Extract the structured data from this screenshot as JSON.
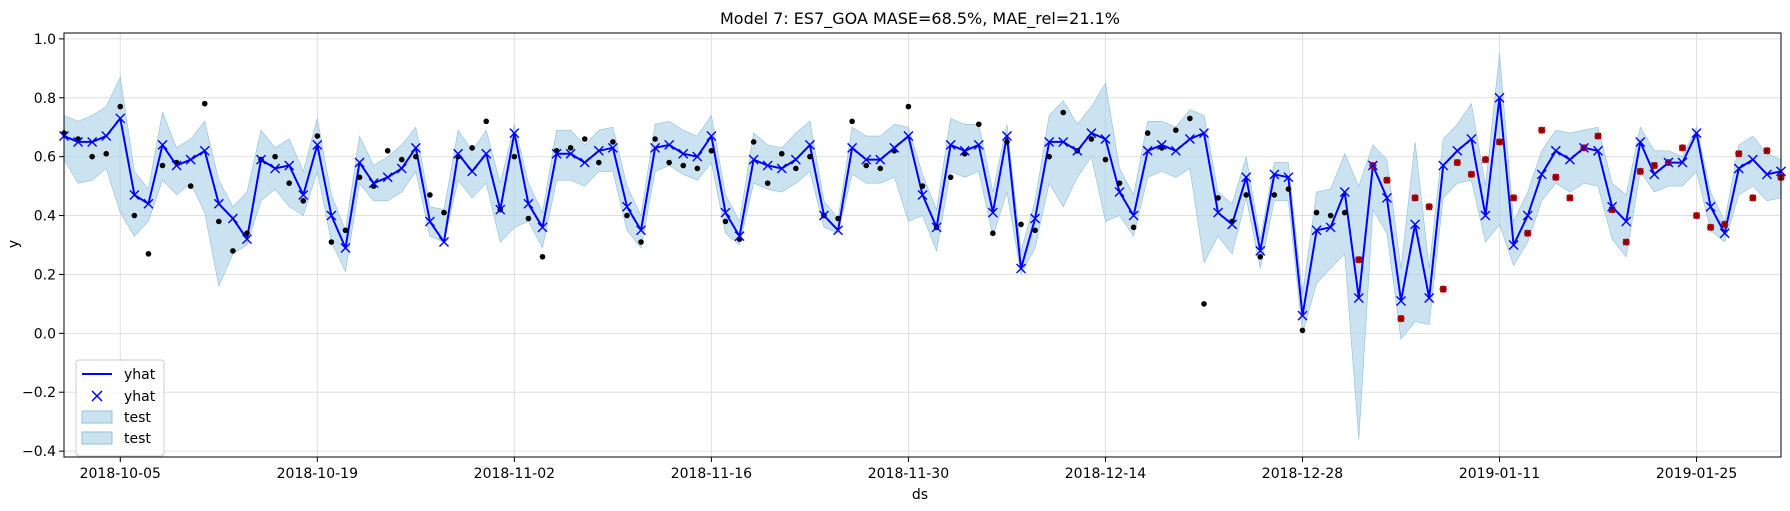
{
  "chart_data": {
    "type": "line",
    "title": "Model 7: ES7_GOA MASE=68.5%, MAE_rel=21.1%",
    "xlabel": "ds",
    "ylabel": "y",
    "x_start": "2018-10-01",
    "x_end": "2019-01-31",
    "ylim": [
      -0.42,
      1.02
    ],
    "grid": true,
    "legend_position": "lower-left",
    "x_ticks": [
      "2018-10-05",
      "2018-10-19",
      "2018-11-02",
      "2018-11-16",
      "2018-11-30",
      "2018-12-14",
      "2018-12-28",
      "2019-01-11",
      "2019-01-25"
    ],
    "y_ticks": [
      "−0.4",
      "−0.2",
      "0.0",
      "0.2",
      "0.4",
      "0.6",
      "0.8",
      "1.0"
    ],
    "y_tick_values": [
      -0.4,
      -0.2,
      0.0,
      0.2,
      0.4,
      0.6,
      0.8,
      1.0
    ],
    "legend": [
      "yhat",
      "yhat",
      "test",
      "test"
    ],
    "colors": {
      "line": "#0000ff",
      "band": "#a8d1e6",
      "band_edge": "#8ec0da",
      "actual": "#000000",
      "test_marker": "#cc0000",
      "grid": "#e0e0e0"
    },
    "dates": [
      "2018-10-01",
      "2018-10-02",
      "2018-10-03",
      "2018-10-04",
      "2018-10-05",
      "2018-10-06",
      "2018-10-07",
      "2018-10-08",
      "2018-10-09",
      "2018-10-10",
      "2018-10-11",
      "2018-10-12",
      "2018-10-13",
      "2018-10-14",
      "2018-10-15",
      "2018-10-16",
      "2018-10-17",
      "2018-10-18",
      "2018-10-19",
      "2018-10-20",
      "2018-10-21",
      "2018-10-22",
      "2018-10-23",
      "2018-10-24",
      "2018-10-25",
      "2018-10-26",
      "2018-10-27",
      "2018-10-28",
      "2018-10-29",
      "2018-10-30",
      "2018-10-31",
      "2018-11-01",
      "2018-11-02",
      "2018-11-03",
      "2018-11-04",
      "2018-11-05",
      "2018-11-06",
      "2018-11-07",
      "2018-11-08",
      "2018-11-09",
      "2018-11-10",
      "2018-11-11",
      "2018-11-12",
      "2018-11-13",
      "2018-11-14",
      "2018-11-15",
      "2018-11-16",
      "2018-11-17",
      "2018-11-18",
      "2018-11-19",
      "2018-11-20",
      "2018-11-21",
      "2018-11-22",
      "2018-11-23",
      "2018-11-24",
      "2018-11-25",
      "2018-11-26",
      "2018-11-27",
      "2018-11-28",
      "2018-11-29",
      "2018-11-30",
      "2018-12-01",
      "2018-12-02",
      "2018-12-03",
      "2018-12-04",
      "2018-12-05",
      "2018-12-06",
      "2018-12-07",
      "2018-12-08",
      "2018-12-09",
      "2018-12-10",
      "2018-12-11",
      "2018-12-12",
      "2018-12-13",
      "2018-12-14",
      "2018-12-15",
      "2018-12-16",
      "2018-12-17",
      "2018-12-18",
      "2018-12-19",
      "2018-12-20",
      "2018-12-21",
      "2018-12-22",
      "2018-12-23",
      "2018-12-24",
      "2018-12-25",
      "2018-12-26",
      "2018-12-27",
      "2018-12-28",
      "2018-12-29",
      "2018-12-30",
      "2018-12-31",
      "2019-01-01",
      "2019-01-02",
      "2019-01-03",
      "2019-01-04",
      "2019-01-05",
      "2019-01-06",
      "2019-01-07",
      "2019-01-08",
      "2019-01-09",
      "2019-01-10",
      "2019-01-11",
      "2019-01-12",
      "2019-01-13",
      "2019-01-14",
      "2019-01-15",
      "2019-01-16",
      "2019-01-17",
      "2019-01-18",
      "2019-01-19",
      "2019-01-20",
      "2019-01-21",
      "2019-01-22",
      "2019-01-23",
      "2019-01-24",
      "2019-01-25",
      "2019-01-26",
      "2019-01-27",
      "2019-01-28",
      "2019-01-29",
      "2019-01-30",
      "2019-01-31"
    ],
    "series": [
      {
        "name": "yhat",
        "values": [
          0.67,
          0.65,
          0.65,
          0.67,
          0.73,
          0.47,
          0.44,
          0.64,
          0.57,
          0.59,
          0.62,
          0.44,
          0.39,
          0.32,
          0.59,
          0.56,
          0.57,
          0.47,
          0.64,
          0.4,
          0.29,
          0.58,
          0.51,
          0.53,
          0.56,
          0.63,
          0.38,
          0.31,
          0.61,
          0.55,
          0.61,
          0.42,
          0.68,
          0.44,
          0.36,
          0.61,
          0.61,
          0.58,
          0.62,
          0.63,
          0.43,
          0.35,
          0.63,
          0.64,
          0.61,
          0.6,
          0.67,
          0.41,
          0.33,
          0.59,
          0.57,
          0.56,
          0.59,
          0.64,
          0.4,
          0.35,
          0.63,
          0.59,
          0.59,
          0.63,
          0.67,
          0.47,
          0.36,
          0.64,
          0.62,
          0.64,
          0.41,
          0.67,
          0.22,
          0.39,
          0.65,
          0.65,
          0.62,
          0.68,
          0.66,
          0.48,
          0.4,
          0.62,
          0.64,
          0.62,
          0.66,
          0.68,
          0.41,
          0.37,
          0.53,
          0.28,
          0.54,
          0.53,
          0.06,
          0.35,
          0.36,
          0.48,
          0.12,
          0.57,
          0.46,
          0.11,
          0.37,
          0.12,
          0.57,
          0.62,
          0.66,
          0.4,
          0.8,
          0.3,
          0.4,
          0.54,
          0.62,
          0.59,
          0.63,
          0.62,
          0.43,
          0.38,
          0.65,
          0.54,
          0.58,
          0.58,
          0.68,
          0.43,
          0.34,
          0.56,
          0.59,
          0.54,
          0.55
        ]
      },
      {
        "name": "test",
        "lower": [
          0.59,
          0.51,
          0.52,
          0.56,
          0.41,
          0.33,
          0.38,
          0.52,
          0.47,
          0.51,
          0.41,
          0.16,
          0.27,
          0.3,
          0.45,
          0.49,
          0.43,
          0.4,
          0.55,
          0.31,
          0.21,
          0.51,
          0.45,
          0.45,
          0.48,
          0.55,
          0.33,
          0.31,
          0.52,
          0.46,
          0.51,
          0.31,
          0.36,
          0.38,
          0.29,
          0.52,
          0.52,
          0.5,
          0.55,
          0.55,
          0.35,
          0.29,
          0.55,
          0.57,
          0.54,
          0.52,
          0.58,
          0.34,
          0.3,
          0.51,
          0.49,
          0.48,
          0.51,
          0.55,
          0.36,
          0.34,
          0.54,
          0.51,
          0.51,
          0.53,
          0.38,
          0.4,
          0.28,
          0.55,
          0.53,
          0.55,
          0.33,
          0.48,
          0.2,
          0.29,
          0.51,
          0.43,
          0.53,
          0.6,
          0.38,
          0.4,
          0.33,
          0.53,
          0.55,
          0.53,
          0.56,
          0.24,
          0.33,
          0.27,
          0.46,
          0.22,
          0.45,
          0.45,
          0.0,
          0.17,
          0.22,
          0.27,
          -0.36,
          0.42,
          0.34,
          -0.02,
          0.04,
          0.03,
          0.46,
          0.51,
          0.52,
          0.31,
          0.37,
          0.23,
          0.31,
          0.45,
          0.51,
          0.48,
          0.51,
          0.5,
          0.32,
          0.26,
          0.55,
          0.48,
          0.5,
          0.5,
          0.55,
          0.35,
          0.31,
          0.47,
          0.5,
          0.45,
          0.46
        ],
        "upper": [
          0.74,
          0.72,
          0.74,
          0.77,
          0.87,
          0.55,
          0.49,
          0.75,
          0.63,
          0.66,
          0.72,
          0.52,
          0.43,
          0.48,
          0.69,
          0.63,
          0.66,
          0.55,
          0.73,
          0.47,
          0.35,
          0.67,
          0.57,
          0.6,
          0.64,
          0.7,
          0.43,
          0.42,
          0.69,
          0.62,
          0.69,
          0.51,
          0.71,
          0.51,
          0.41,
          0.69,
          0.69,
          0.64,
          0.69,
          0.7,
          0.5,
          0.4,
          0.71,
          0.72,
          0.69,
          0.67,
          0.74,
          0.47,
          0.38,
          0.68,
          0.64,
          0.63,
          0.68,
          0.72,
          0.45,
          0.39,
          0.7,
          0.67,
          0.67,
          0.71,
          0.7,
          0.54,
          0.42,
          0.73,
          0.71,
          0.71,
          0.48,
          0.71,
          0.28,
          0.45,
          0.74,
          0.79,
          0.71,
          0.77,
          0.85,
          0.56,
          0.47,
          0.72,
          0.72,
          0.7,
          0.76,
          0.74,
          0.48,
          0.44,
          0.6,
          0.32,
          0.58,
          0.58,
          0.13,
          0.48,
          0.49,
          0.61,
          0.5,
          0.64,
          0.59,
          0.22,
          0.65,
          0.22,
          0.66,
          0.71,
          0.78,
          0.5,
          0.95,
          0.38,
          0.48,
          0.62,
          0.69,
          0.68,
          0.69,
          0.7,
          0.51,
          0.47,
          0.7,
          0.62,
          0.62,
          0.6,
          0.7,
          0.48,
          0.38,
          0.64,
          0.67,
          0.61,
          0.59
        ]
      }
    ],
    "actual_points": [
      {
        "x": "2018-10-01",
        "y": 0.68
      },
      {
        "x": "2018-10-02",
        "y": 0.66
      },
      {
        "x": "2018-10-03",
        "y": 0.6
      },
      {
        "x": "2018-10-04",
        "y": 0.61
      },
      {
        "x": "2018-10-05",
        "y": 0.77
      },
      {
        "x": "2018-10-06",
        "y": 0.4
      },
      {
        "x": "2018-10-07",
        "y": 0.27
      },
      {
        "x": "2018-10-08",
        "y": 0.57
      },
      {
        "x": "2018-10-09",
        "y": 0.58
      },
      {
        "x": "2018-10-10",
        "y": 0.5
      },
      {
        "x": "2018-10-11",
        "y": 0.78
      },
      {
        "x": "2018-10-12",
        "y": 0.38
      },
      {
        "x": "2018-10-13",
        "y": 0.28
      },
      {
        "x": "2018-10-14",
        "y": 0.34
      },
      {
        "x": "2018-10-15",
        "y": 0.59
      },
      {
        "x": "2018-10-16",
        "y": 0.6
      },
      {
        "x": "2018-10-17",
        "y": 0.51
      },
      {
        "x": "2018-10-18",
        "y": 0.45
      },
      {
        "x": "2018-10-19",
        "y": 0.67
      },
      {
        "x": "2018-10-20",
        "y": 0.31
      },
      {
        "x": "2018-10-21",
        "y": 0.35
      },
      {
        "x": "2018-10-22",
        "y": 0.53
      },
      {
        "x": "2018-10-23",
        "y": 0.5
      },
      {
        "x": "2018-10-24",
        "y": 0.62
      },
      {
        "x": "2018-10-25",
        "y": 0.59
      },
      {
        "x": "2018-10-26",
        "y": 0.6
      },
      {
        "x": "2018-10-27",
        "y": 0.47
      },
      {
        "x": "2018-10-28",
        "y": 0.41
      },
      {
        "x": "2018-10-29",
        "y": 0.6
      },
      {
        "x": "2018-10-30",
        "y": 0.63
      },
      {
        "x": "2018-10-31",
        "y": 0.72
      },
      {
        "x": "2018-11-01",
        "y": 0.42
      },
      {
        "x": "2018-11-02",
        "y": 0.6
      },
      {
        "x": "2018-11-03",
        "y": 0.39
      },
      {
        "x": "2018-11-04",
        "y": 0.26
      },
      {
        "x": "2018-11-05",
        "y": 0.62
      },
      {
        "x": "2018-11-06",
        "y": 0.63
      },
      {
        "x": "2018-11-07",
        "y": 0.66
      },
      {
        "x": "2018-11-08",
        "y": 0.58
      },
      {
        "x": "2018-11-09",
        "y": 0.65
      },
      {
        "x": "2018-11-10",
        "y": 0.4
      },
      {
        "x": "2018-11-11",
        "y": 0.31
      },
      {
        "x": "2018-11-12",
        "y": 0.66
      },
      {
        "x": "2018-11-13",
        "y": 0.58
      },
      {
        "x": "2018-11-14",
        "y": 0.57
      },
      {
        "x": "2018-11-15",
        "y": 0.56
      },
      {
        "x": "2018-11-16",
        "y": 0.62
      },
      {
        "x": "2018-11-17",
        "y": 0.38
      },
      {
        "x": "2018-11-18",
        "y": 0.32
      },
      {
        "x": "2018-11-19",
        "y": 0.65
      },
      {
        "x": "2018-11-20",
        "y": 0.51
      },
      {
        "x": "2018-11-21",
        "y": 0.61
      },
      {
        "x": "2018-11-22",
        "y": 0.56
      },
      {
        "x": "2018-11-23",
        "y": 0.6
      },
      {
        "x": "2018-11-24",
        "y": 0.4
      },
      {
        "x": "2018-11-25",
        "y": 0.39
      },
      {
        "x": "2018-11-26",
        "y": 0.72
      },
      {
        "x": "2018-11-27",
        "y": 0.57
      },
      {
        "x": "2018-11-28",
        "y": 0.56
      },
      {
        "x": "2018-11-29",
        "y": 0.62
      },
      {
        "x": "2018-11-30",
        "y": 0.77
      },
      {
        "x": "2018-12-01",
        "y": 0.5
      },
      {
        "x": "2018-12-02",
        "y": 0.36
      },
      {
        "x": "2018-12-03",
        "y": 0.53
      },
      {
        "x": "2018-12-04",
        "y": 0.61
      },
      {
        "x": "2018-12-05",
        "y": 0.71
      },
      {
        "x": "2018-12-06",
        "y": 0.34
      },
      {
        "x": "2018-12-07",
        "y": 0.65
      },
      {
        "x": "2018-12-08",
        "y": 0.37
      },
      {
        "x": "2018-12-09",
        "y": 0.35
      },
      {
        "x": "2018-12-10",
        "y": 0.6
      },
      {
        "x": "2018-12-11",
        "y": 0.75
      },
      {
        "x": "2018-12-12",
        "y": 0.62
      },
      {
        "x": "2018-12-13",
        "y": 0.66
      },
      {
        "x": "2018-12-14",
        "y": 0.59
      },
      {
        "x": "2018-12-15",
        "y": 0.51
      },
      {
        "x": "2018-12-16",
        "y": 0.36
      },
      {
        "x": "2018-12-17",
        "y": 0.68
      },
      {
        "x": "2018-12-18",
        "y": 0.63
      },
      {
        "x": "2018-12-19",
        "y": 0.69
      },
      {
        "x": "2018-12-20",
        "y": 0.73
      },
      {
        "x": "2018-12-21",
        "y": 0.1
      },
      {
        "x": "2018-12-22",
        "y": 0.46
      },
      {
        "x": "2018-12-23",
        "y": 0.38
      },
      {
        "x": "2018-12-24",
        "y": 0.47
      },
      {
        "x": "2018-12-25",
        "y": 0.26
      },
      {
        "x": "2018-12-26",
        "y": 0.47
      },
      {
        "x": "2018-12-27",
        "y": 0.49
      },
      {
        "x": "2018-12-28",
        "y": 0.01
      },
      {
        "x": "2018-12-29",
        "y": 0.41
      },
      {
        "x": "2018-12-30",
        "y": 0.4
      },
      {
        "x": "2018-12-31",
        "y": 0.41
      }
    ],
    "test_points": [
      {
        "x": "2019-01-01",
        "y": 0.25
      },
      {
        "x": "2019-01-02",
        "y": 0.57
      },
      {
        "x": "2019-01-03",
        "y": 0.52
      },
      {
        "x": "2019-01-04",
        "y": 0.05
      },
      {
        "x": "2019-01-05",
        "y": 0.46
      },
      {
        "x": "2019-01-06",
        "y": 0.43
      },
      {
        "x": "2019-01-07",
        "y": 0.15
      },
      {
        "x": "2019-01-08",
        "y": 0.58
      },
      {
        "x": "2019-01-09",
        "y": 0.54
      },
      {
        "x": "2019-01-10",
        "y": 0.59
      },
      {
        "x": "2019-01-11",
        "y": 0.65
      },
      {
        "x": "2019-01-12",
        "y": 0.46
      },
      {
        "x": "2019-01-13",
        "y": 0.34
      },
      {
        "x": "2019-01-14",
        "y": 0.69
      },
      {
        "x": "2019-01-15",
        "y": 0.53
      },
      {
        "x": "2019-01-16",
        "y": 0.46
      },
      {
        "x": "2019-01-17",
        "y": 0.63
      },
      {
        "x": "2019-01-18",
        "y": 0.67
      },
      {
        "x": "2019-01-19",
        "y": 0.42
      },
      {
        "x": "2019-01-20",
        "y": 0.31
      },
      {
        "x": "2019-01-21",
        "y": 0.55
      },
      {
        "x": "2019-01-22",
        "y": 0.57
      },
      {
        "x": "2019-01-23",
        "y": 0.58
      },
      {
        "x": "2019-01-24",
        "y": 0.63
      },
      {
        "x": "2019-01-25",
        "y": 0.4
      },
      {
        "x": "2019-01-26",
        "y": 0.36
      },
      {
        "x": "2019-01-27",
        "y": 0.37
      },
      {
        "x": "2019-01-28",
        "y": 0.61
      },
      {
        "x": "2019-01-29",
        "y": 0.46
      },
      {
        "x": "2019-01-30",
        "y": 0.62
      },
      {
        "x": "2019-01-31",
        "y": 0.53
      }
    ]
  }
}
